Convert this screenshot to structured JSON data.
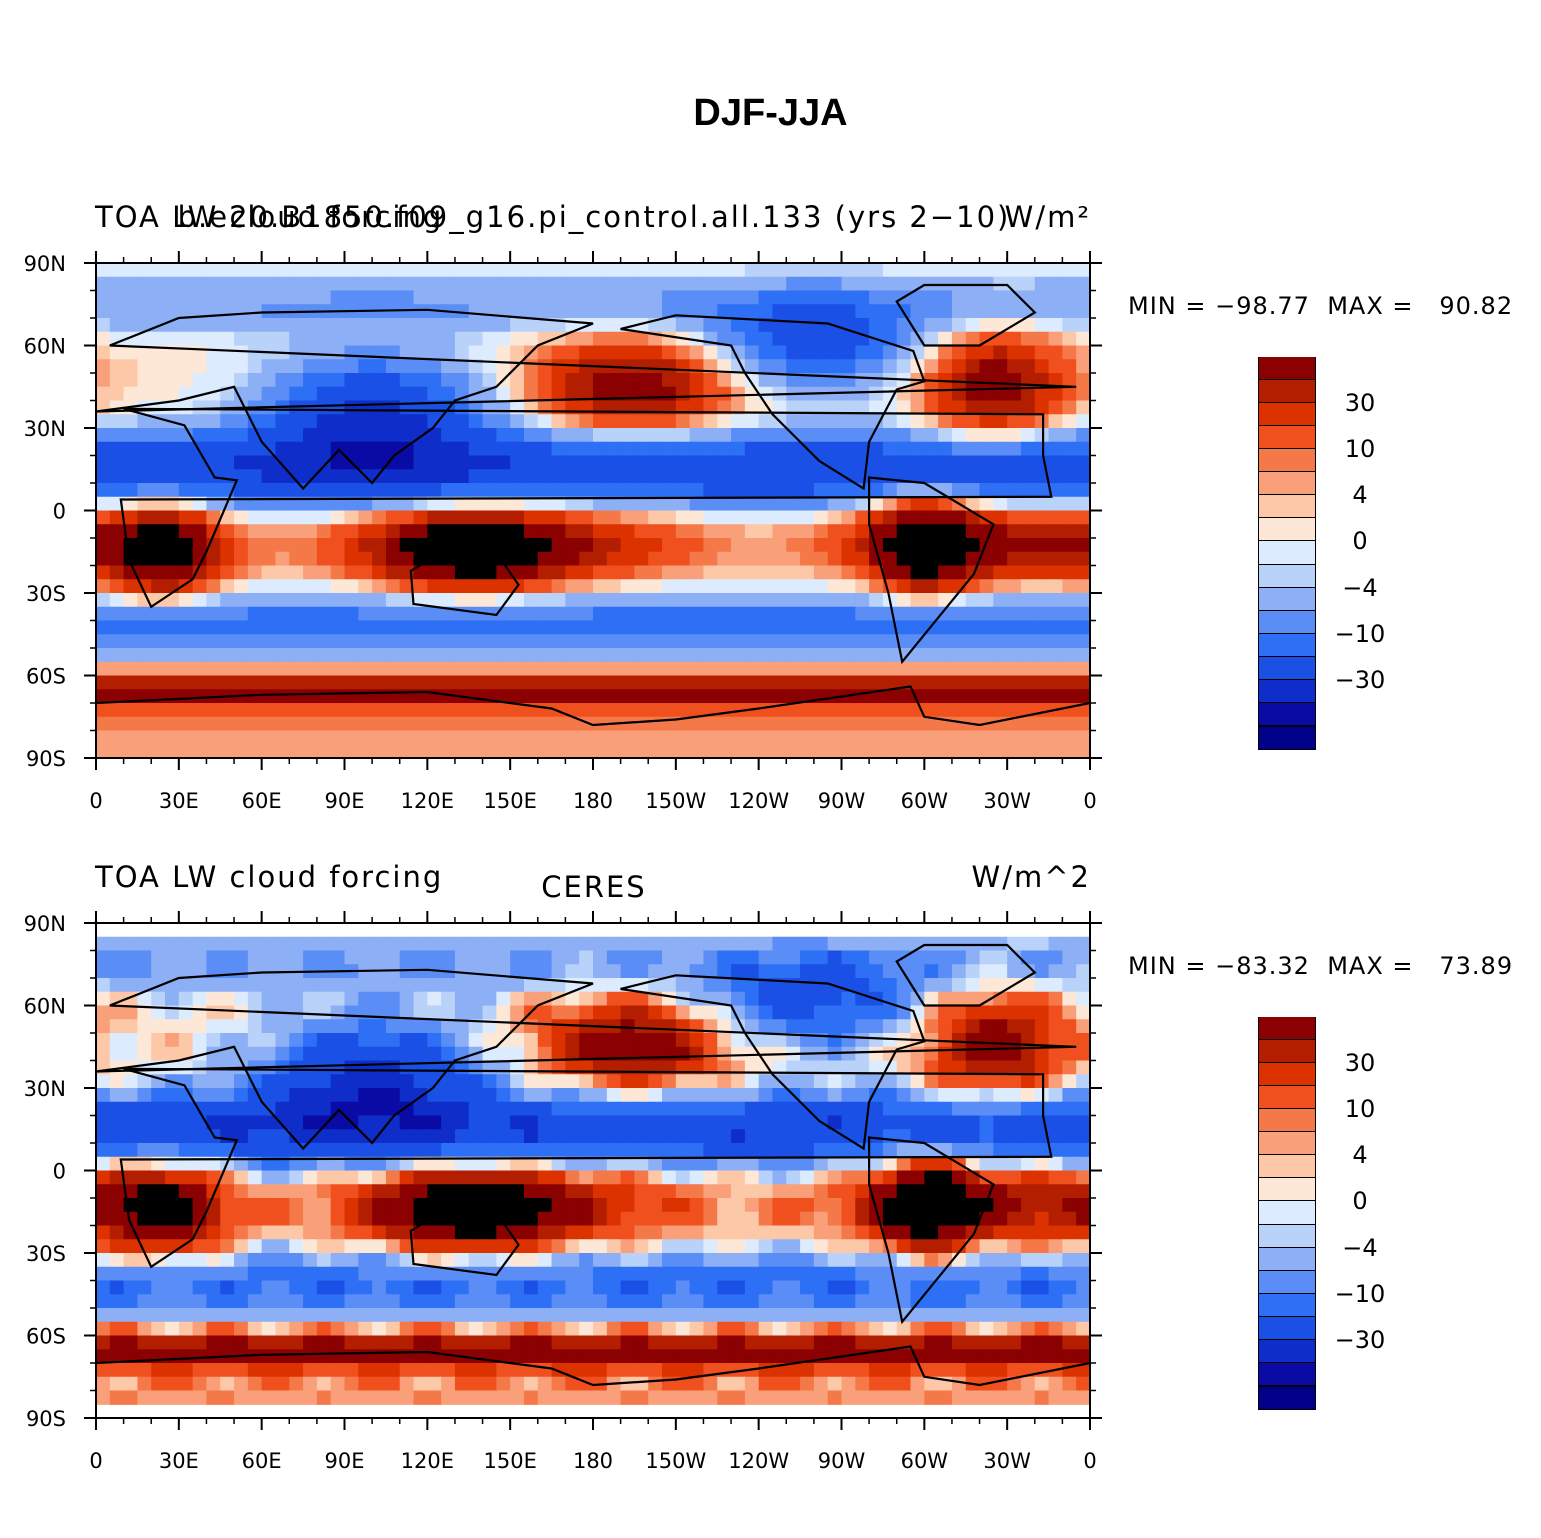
{
  "title": "DJF-JJA",
  "colorbar": {
    "colors": [
      "#00008b",
      "#0a0aa5",
      "#0f2dc8",
      "#1a50e6",
      "#2d6ff5",
      "#5a8df5",
      "#8caff5",
      "#b9d2fa",
      "#dcebfd",
      "#fde8d8",
      "#fcc8a8",
      "#f9a07a",
      "#f57848",
      "#f0501e",
      "#dc3200",
      "#b41e00",
      "#8b0000"
    ],
    "labels": [
      "30",
      "10",
      "4",
      "0",
      "−4",
      "−10",
      "−30"
    ]
  },
  "chart_data": [
    {
      "type": "heatmap",
      "title_left": "TOA LW cloud forcing",
      "title_center": "b.e20.B1850.f09_g16.pi_control.all.133 (yrs 2−10)",
      "units": "W/m²",
      "min_label": "MIN = −98.77",
      "max_label": "MAX =   90.82",
      "min": -98.77,
      "max": 90.82,
      "x_ticks": [
        "0",
        "30E",
        "60E",
        "90E",
        "120E",
        "150E",
        "180",
        "150W",
        "120W",
        "90W",
        "60W",
        "30W",
        "0"
      ],
      "y_ticks": [
        "90N",
        "60N",
        "30N",
        "0",
        "30S",
        "60S",
        "90S"
      ],
      "contour_levels": [
        -50,
        -40,
        -30,
        -20,
        -15,
        -10,
        -6,
        -4,
        -2,
        0,
        2,
        4,
        6,
        10,
        15,
        20,
        30,
        40
      ]
    },
    {
      "type": "heatmap",
      "title_left": "TOA LW cloud forcing",
      "title_center": "CERES",
      "units": "W/m^2",
      "min_label": "MIN = −83.32",
      "max_label": "MAX =   73.89",
      "min": -83.32,
      "max": 73.89,
      "x_ticks": [
        "0",
        "30E",
        "60E",
        "90E",
        "120E",
        "150E",
        "180",
        "150W",
        "120W",
        "90W",
        "60W",
        "30W",
        "0"
      ],
      "y_ticks": [
        "90N",
        "60N",
        "30N",
        "0",
        "30S",
        "60S",
        "90S"
      ],
      "contour_levels": [
        -50,
        -40,
        -30,
        -20,
        -15,
        -10,
        -6,
        -4,
        -2,
        0,
        2,
        4,
        6,
        10,
        15,
        20,
        30,
        40
      ]
    }
  ]
}
